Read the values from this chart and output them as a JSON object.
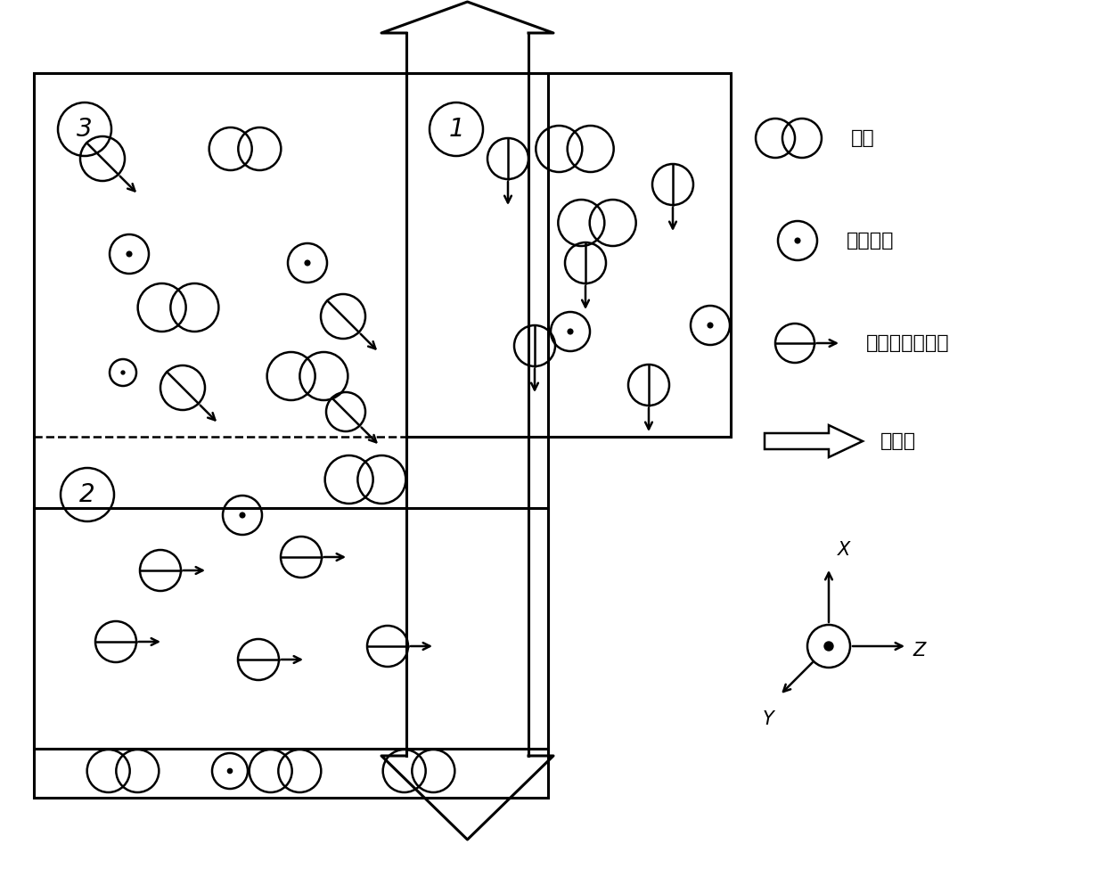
{
  "bg_color": "#ffffff",
  "lw": 1.8,
  "lw_thick": 2.2,
  "labels": [
    "1",
    "2",
    "3"
  ],
  "legend_labels": [
    "氮气",
    "淤灭气体",
    "碱金属原子气体",
    "抗运光"
  ],
  "axis_labels": [
    "X",
    "Y",
    "Z"
  ],
  "font_size_legend": 16,
  "font_size_label": 20,
  "font_size_axis": 15
}
